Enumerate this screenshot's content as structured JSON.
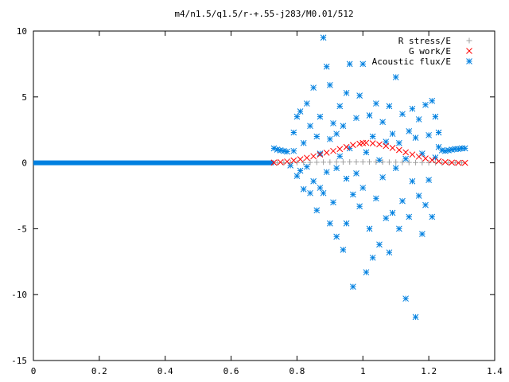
{
  "chart_data": {
    "type": "scatter",
    "title": "m4/n1.5/q1.5/r-+.55-j283/M0.01/512",
    "xlabel": "",
    "ylabel": "",
    "xlim": [
      0,
      1.4
    ],
    "ylim": [
      -15,
      10
    ],
    "x_ticks": [
      0,
      0.2,
      0.4,
      0.6,
      0.8,
      1,
      1.2,
      1.4
    ],
    "x_tick_labels": [
      "0",
      "0.2",
      "0.4",
      "0.6",
      "0.8",
      "1",
      "1.2",
      "1.4"
    ],
    "y_ticks": [
      -15,
      -10,
      -5,
      0,
      5,
      10
    ],
    "y_tick_labels": [
      "-15",
      "-10",
      "-5",
      "0",
      "5",
      "10"
    ],
    "grid": false,
    "legend_position": "top-right",
    "series": [
      {
        "name": "R stress/E",
        "marker": "plus",
        "color": "#a0a0a0",
        "points": [
          [
            0.74,
            0.0
          ],
          [
            0.76,
            0.0
          ],
          [
            0.78,
            0.01
          ],
          [
            0.8,
            0.02
          ],
          [
            0.82,
            0.02
          ],
          [
            0.84,
            0.03
          ],
          [
            0.86,
            0.04
          ],
          [
            0.88,
            0.05
          ],
          [
            0.9,
            0.05
          ],
          [
            0.92,
            0.06
          ],
          [
            0.94,
            0.06
          ],
          [
            0.96,
            0.07
          ],
          [
            0.98,
            0.07
          ],
          [
            1.0,
            0.07
          ],
          [
            1.02,
            0.07
          ],
          [
            1.04,
            0.06
          ],
          [
            1.06,
            0.06
          ],
          [
            1.08,
            0.05
          ],
          [
            1.1,
            0.05
          ],
          [
            1.12,
            0.04
          ],
          [
            1.14,
            0.03
          ],
          [
            1.16,
            0.02
          ],
          [
            1.18,
            0.02
          ],
          [
            1.2,
            0.01
          ],
          [
            1.22,
            0.01
          ],
          [
            1.24,
            0.0
          ],
          [
            1.26,
            0.0
          ],
          [
            1.28,
            0.0
          ],
          [
            1.3,
            0.0
          ]
        ]
      },
      {
        "name": "G work/E",
        "marker": "cross",
        "color": "#ff0000",
        "points": [
          [
            0.73,
            0.02
          ],
          [
            0.75,
            0.05
          ],
          [
            0.77,
            0.1
          ],
          [
            0.79,
            0.18
          ],
          [
            0.81,
            0.27
          ],
          [
            0.83,
            0.38
          ],
          [
            0.85,
            0.5
          ],
          [
            0.87,
            0.63
          ],
          [
            0.89,
            0.77
          ],
          [
            0.91,
            0.9
          ],
          [
            0.93,
            1.05
          ],
          [
            0.95,
            1.2
          ],
          [
            0.97,
            1.35
          ],
          [
            0.99,
            1.45
          ],
          [
            1.0,
            1.5
          ],
          [
            1.01,
            1.52
          ],
          [
            1.03,
            1.48
          ],
          [
            1.05,
            1.4
          ],
          [
            1.07,
            1.28
          ],
          [
            1.09,
            1.13
          ],
          [
            1.11,
            0.97
          ],
          [
            1.13,
            0.8
          ],
          [
            1.15,
            0.63
          ],
          [
            1.17,
            0.47
          ],
          [
            1.19,
            0.33
          ],
          [
            1.21,
            0.21
          ],
          [
            1.23,
            0.12
          ],
          [
            1.25,
            0.06
          ],
          [
            1.27,
            0.02
          ],
          [
            1.29,
            0.0
          ],
          [
            1.31,
            0.0
          ]
        ]
      },
      {
        "name": "Acoustic flux/E",
        "marker": "star",
        "color": "#0080e0",
        "points": [
          [
            0.73,
            1.1
          ],
          [
            0.74,
            1.0
          ],
          [
            0.75,
            0.95
          ],
          [
            0.76,
            0.9
          ],
          [
            0.77,
            0.85
          ],
          [
            0.78,
            -0.2
          ],
          [
            0.79,
            0.9
          ],
          [
            0.79,
            2.3
          ],
          [
            0.8,
            -1.0
          ],
          [
            0.8,
            3.5
          ],
          [
            0.81,
            3.9
          ],
          [
            0.81,
            -0.6
          ],
          [
            0.82,
            -2.0
          ],
          [
            0.82,
            1.5
          ],
          [
            0.83,
            4.5
          ],
          [
            0.83,
            -0.3
          ],
          [
            0.84,
            -2.3
          ],
          [
            0.84,
            2.8
          ],
          [
            0.85,
            -1.4
          ],
          [
            0.85,
            5.7
          ],
          [
            0.86,
            2.0
          ],
          [
            0.86,
            -3.6
          ],
          [
            0.87,
            0.7
          ],
          [
            0.87,
            -1.9
          ],
          [
            0.87,
            3.5
          ],
          [
            0.88,
            9.5
          ],
          [
            0.88,
            -2.3
          ],
          [
            0.89,
            7.3
          ],
          [
            0.89,
            -0.7
          ],
          [
            0.9,
            1.8
          ],
          [
            0.9,
            -4.6
          ],
          [
            0.9,
            5.9
          ],
          [
            0.91,
            -3.0
          ],
          [
            0.91,
            3.0
          ],
          [
            0.92,
            -0.4
          ],
          [
            0.92,
            2.2
          ],
          [
            0.92,
            -5.6
          ],
          [
            0.93,
            4.3
          ],
          [
            0.93,
            0.5
          ],
          [
            0.94,
            -6.6
          ],
          [
            0.94,
            2.8
          ],
          [
            0.95,
            -1.2
          ],
          [
            0.95,
            5.3
          ],
          [
            0.95,
            -4.6
          ],
          [
            0.96,
            1.1
          ],
          [
            0.96,
            7.5
          ],
          [
            0.97,
            -2.4
          ],
          [
            0.97,
            -9.4
          ],
          [
            0.98,
            3.4
          ],
          [
            0.98,
            -0.8
          ],
          [
            0.99,
            -3.3
          ],
          [
            0.99,
            5.1
          ],
          [
            1.0,
            7.5
          ],
          [
            1.0,
            -1.9
          ],
          [
            1.01,
            0.8
          ],
          [
            1.01,
            -8.3
          ],
          [
            1.02,
            3.6
          ],
          [
            1.02,
            -5.0
          ],
          [
            1.03,
            2.0
          ],
          [
            1.03,
            -7.2
          ],
          [
            1.04,
            -2.7
          ],
          [
            1.04,
            4.5
          ],
          [
            1.05,
            0.2
          ],
          [
            1.05,
            -6.2
          ],
          [
            1.06,
            3.1
          ],
          [
            1.06,
            -1.1
          ],
          [
            1.07,
            -4.2
          ],
          [
            1.07,
            1.6
          ],
          [
            1.08,
            -6.8
          ],
          [
            1.08,
            4.3
          ],
          [
            1.09,
            -3.8
          ],
          [
            1.09,
            2.2
          ],
          [
            1.1,
            6.5
          ],
          [
            1.1,
            -0.4
          ],
          [
            1.11,
            -5.0
          ],
          [
            1.11,
            1.5
          ],
          [
            1.12,
            3.7
          ],
          [
            1.12,
            -2.9
          ],
          [
            1.13,
            -10.3
          ],
          [
            1.13,
            0.3
          ],
          [
            1.14,
            2.4
          ],
          [
            1.14,
            -4.1
          ],
          [
            1.15,
            4.1
          ],
          [
            1.15,
            -1.4
          ],
          [
            1.16,
            -11.7
          ],
          [
            1.16,
            1.9
          ],
          [
            1.17,
            -2.5
          ],
          [
            1.17,
            3.3
          ],
          [
            1.18,
            -5.4
          ],
          [
            1.18,
            0.7
          ],
          [
            1.19,
            4.4
          ],
          [
            1.19,
            -3.2
          ],
          [
            1.2,
            2.1
          ],
          [
            1.2,
            -1.3
          ],
          [
            1.21,
            4.7
          ],
          [
            1.21,
            -4.1
          ],
          [
            1.22,
            0.4
          ],
          [
            1.22,
            3.5
          ],
          [
            1.23,
            2.3
          ],
          [
            1.23,
            1.2
          ],
          [
            1.24,
            0.95
          ],
          [
            1.25,
            0.9
          ],
          [
            1.26,
            0.95
          ],
          [
            1.27,
            1.0
          ],
          [
            1.28,
            1.05
          ],
          [
            1.29,
            1.05
          ],
          [
            1.3,
            1.1
          ],
          [
            1.31,
            1.1
          ]
        ]
      }
    ]
  }
}
